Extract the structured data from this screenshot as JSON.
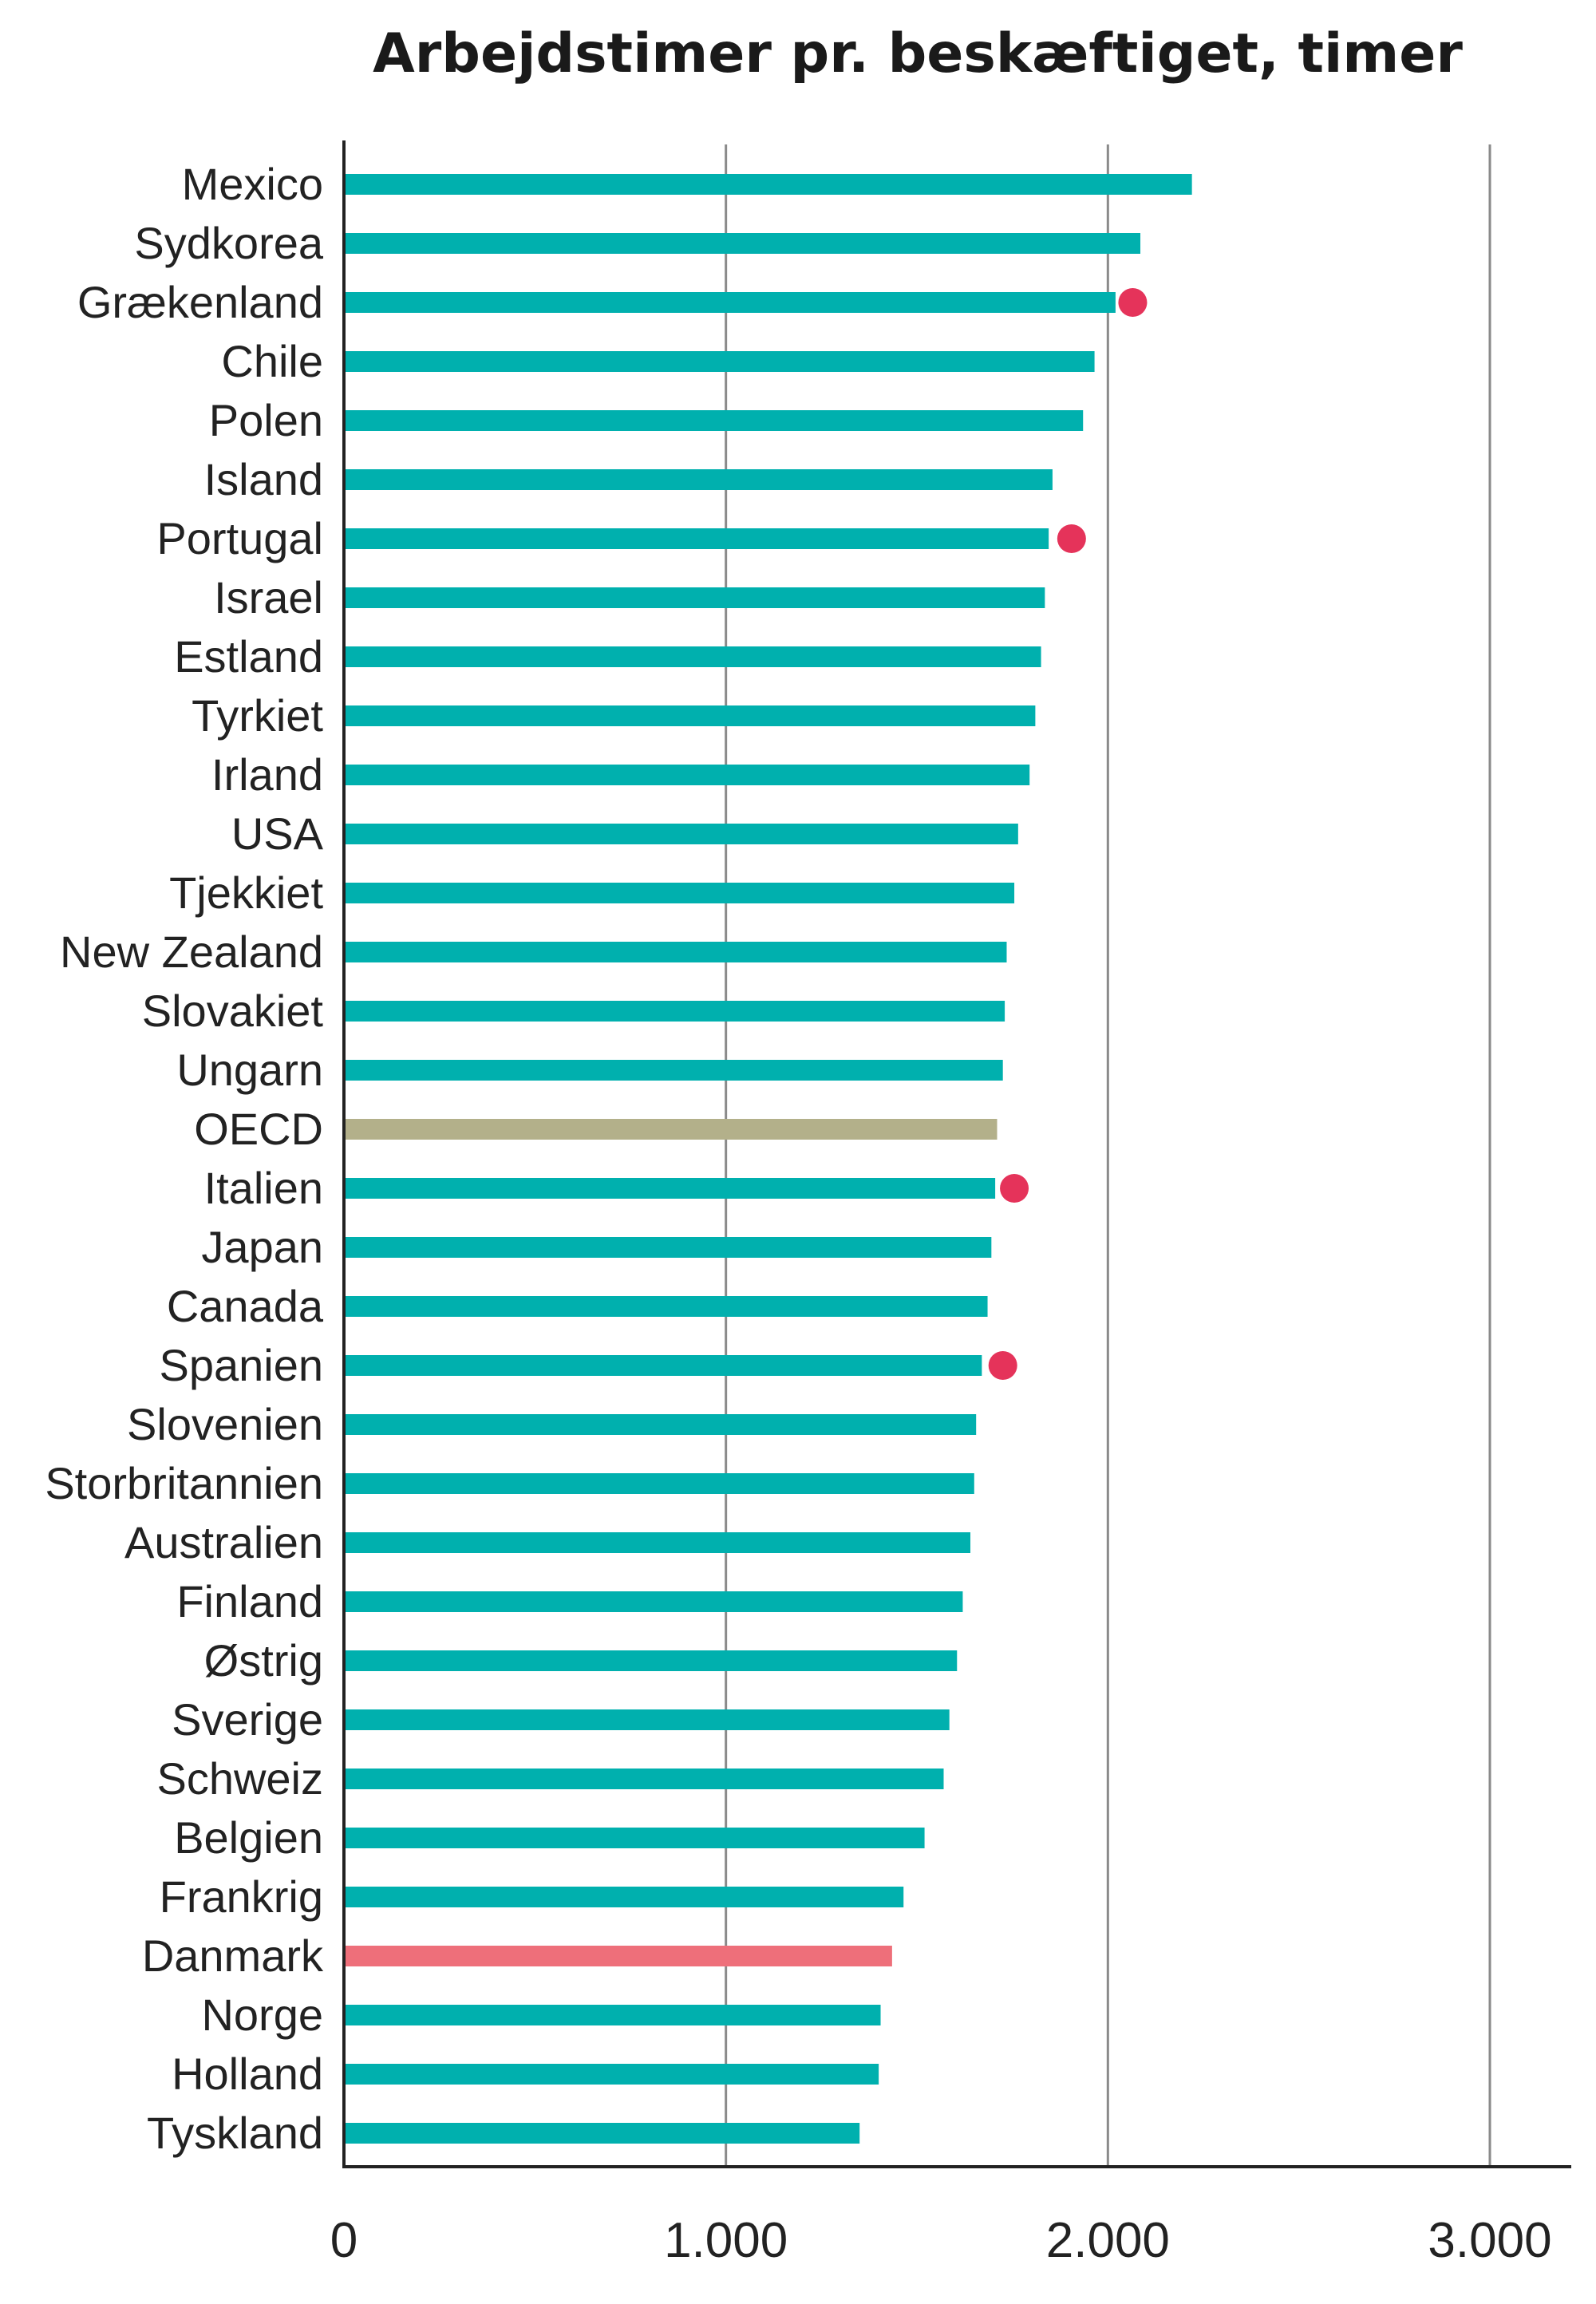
{
  "chart_data": {
    "type": "bar",
    "orientation": "horizontal",
    "title": "Arbejdstimer pr. beskæftiget, timer",
    "xlabel": "",
    "ylabel": "",
    "xlim": [
      0,
      3000
    ],
    "xticks": [
      0,
      1000,
      2000,
      3000
    ],
    "xtick_labels": [
      "0",
      "1.000",
      "2.000",
      "3.000"
    ],
    "grid": "vertical",
    "categories": [
      "Mexico",
      "Sydkorea",
      "Grækenland",
      "Chile",
      "Polen",
      "Island",
      "Portugal",
      "Israel",
      "Estland",
      "Tyrkiet",
      "Irland",
      "USA",
      "Tjekkiet",
      "New Zealand",
      "Slovakiet",
      "Ungarn",
      "OECD",
      "Italien",
      "Japan",
      "Canada",
      "Spanien",
      "Slovenien",
      "Storbritannien",
      "Australien",
      "Finland",
      "Østrig",
      "Sverige",
      "Schweiz",
      "Belgien",
      "Frankrig",
      "Danmark",
      "Norge",
      "Holland",
      "Tyskland"
    ],
    "values": [
      2220,
      2085,
      2020,
      1965,
      1935,
      1855,
      1845,
      1835,
      1825,
      1810,
      1795,
      1765,
      1755,
      1735,
      1730,
      1725,
      1710,
      1705,
      1695,
      1685,
      1670,
      1655,
      1650,
      1640,
      1620,
      1605,
      1585,
      1570,
      1520,
      1465,
      1435,
      1405,
      1400,
      1350
    ],
    "markers": {
      "Grækenland": 2065,
      "Portugal": 1905,
      "Italien": 1755,
      "Spanien": 1725
    },
    "highlight": {
      "OECD": "#b3b08a",
      "Danmark": "#ee6f7a"
    },
    "colors": {
      "bar": "#00b0ae",
      "marker": "#e5335a",
      "grid": "#8a8a8a",
      "axis": "#222222"
    }
  }
}
